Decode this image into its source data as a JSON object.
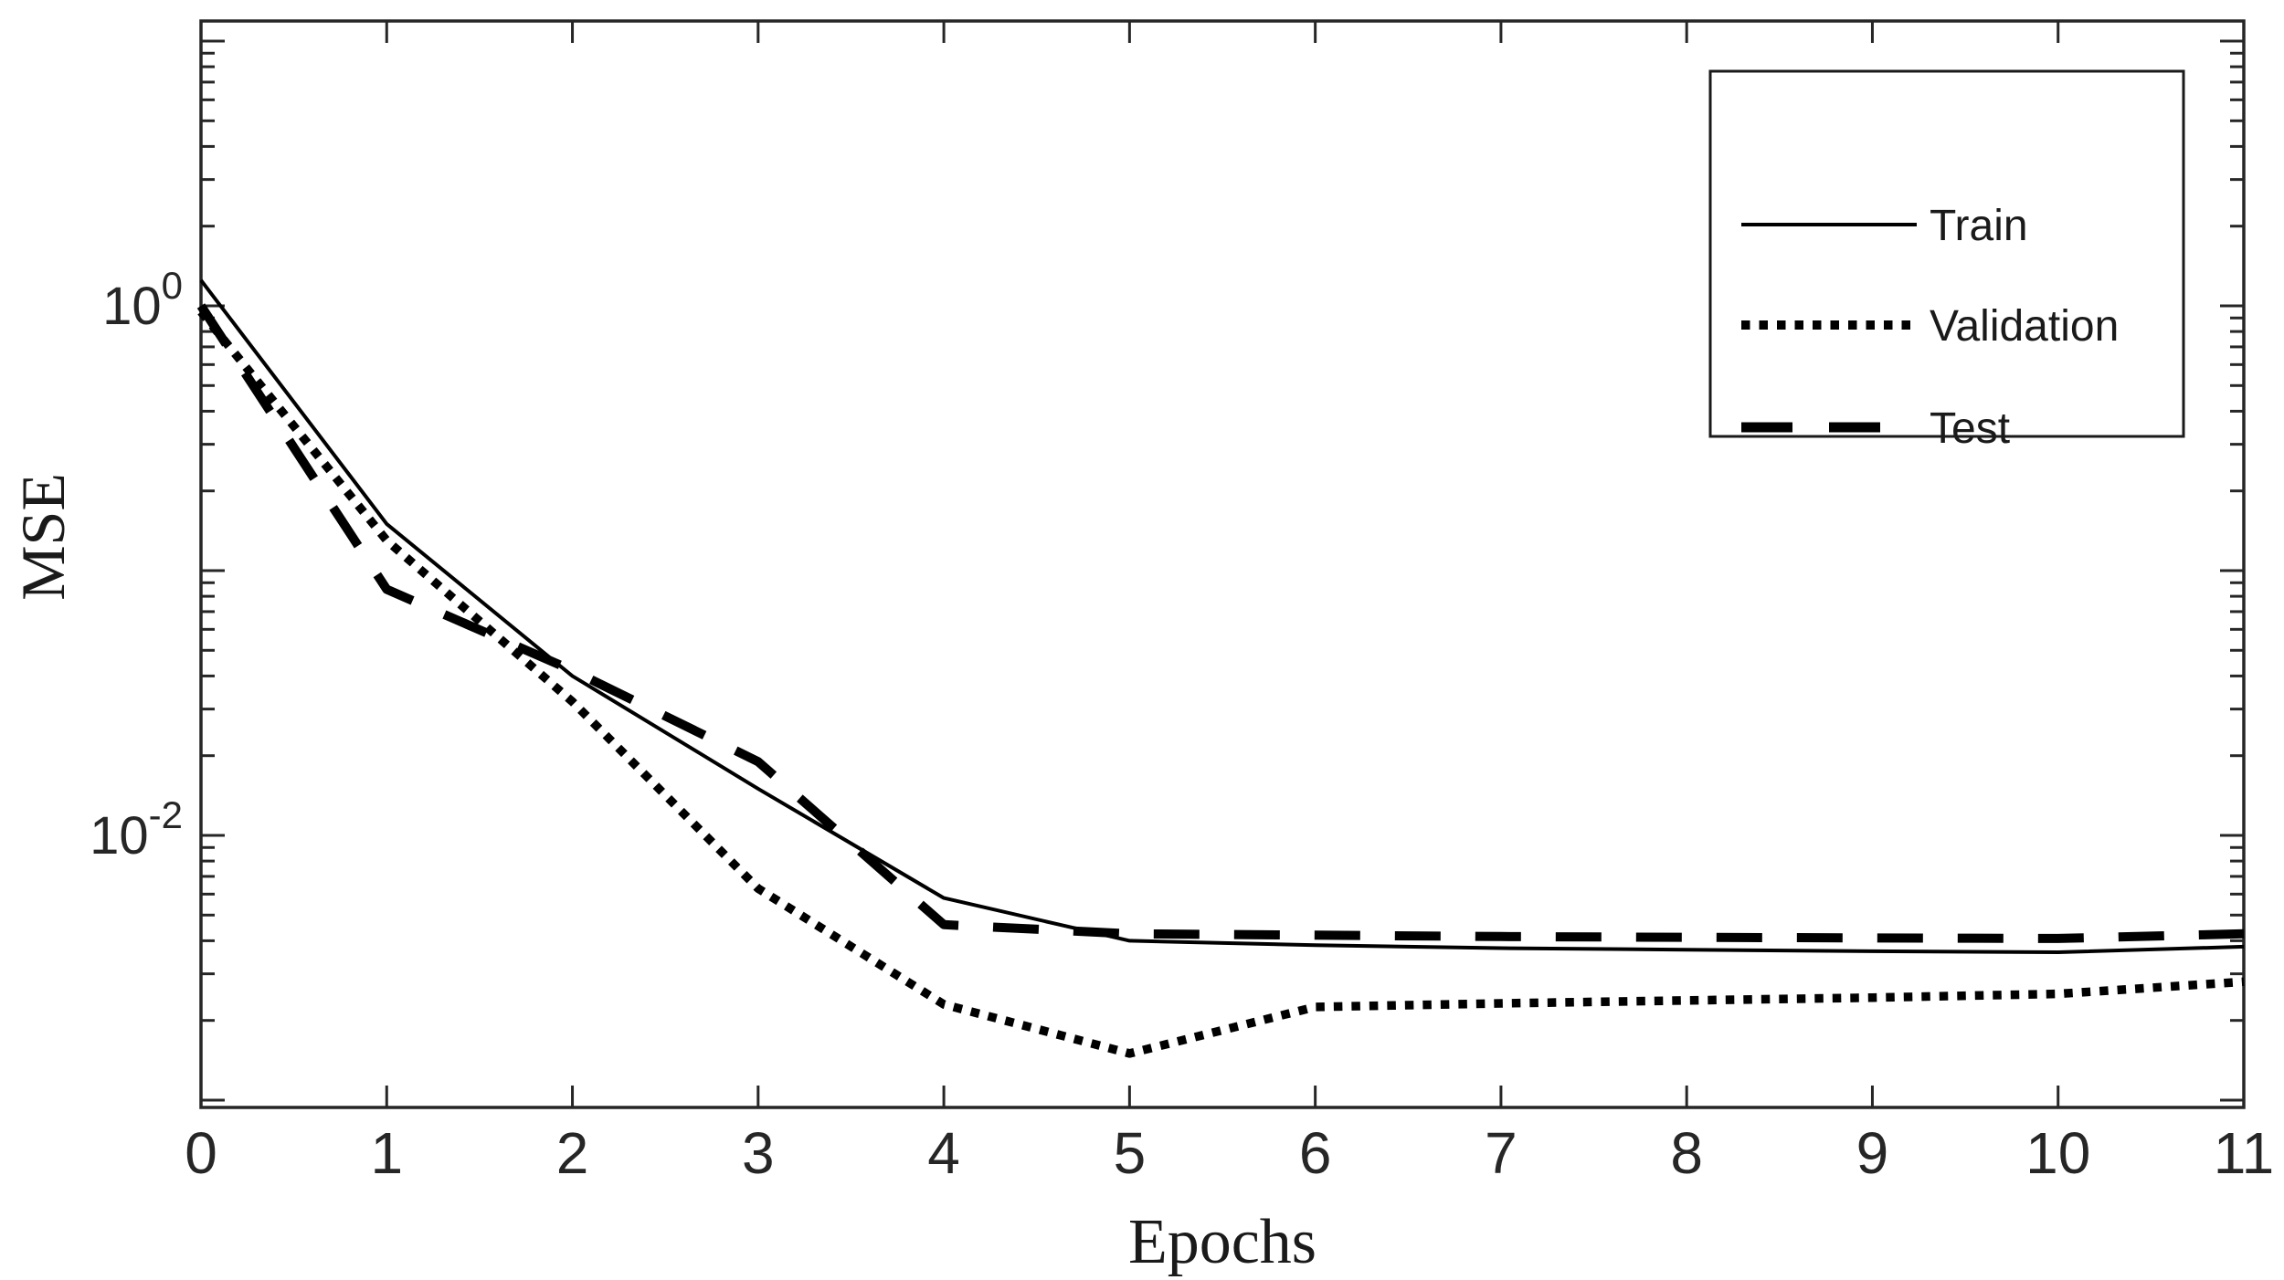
{
  "figure": {
    "background": "#ffffff",
    "axis_color": "#262626",
    "curve_color": "#000000",
    "tick_label_color": "#333333"
  },
  "axes": {
    "xlabel": "Epochs",
    "ylabel": "MSE",
    "x_ticks": [
      {
        "value": 0,
        "label": "0"
      },
      {
        "value": 1,
        "label": "1"
      },
      {
        "value": 2,
        "label": "2"
      },
      {
        "value": 3,
        "label": "3"
      },
      {
        "value": 4,
        "label": "4"
      },
      {
        "value": 5,
        "label": "5"
      },
      {
        "value": 6,
        "label": "6"
      },
      {
        "value": 7,
        "label": "7"
      },
      {
        "value": 8,
        "label": "8"
      },
      {
        "value": 9,
        "label": "9"
      },
      {
        "value": 10,
        "label": "10"
      },
      {
        "value": 11,
        "label": "11"
      }
    ],
    "y_major_exponents": [
      1,
      0,
      -1,
      -2,
      -3
    ],
    "y_labeled_ticks": [
      {
        "exponent": 0,
        "base": "10",
        "exp_label": "0"
      },
      {
        "exponent": -2,
        "base": "10",
        "exp_label": "-2"
      }
    ],
    "y_minor_multiples": [
      2,
      3,
      4,
      5,
      6,
      7,
      8,
      9
    ]
  },
  "legend": {
    "entries": [
      {
        "label": "Train",
        "style": "solid"
      },
      {
        "label": "Validation",
        "style": "dotted"
      },
      {
        "label": "Test",
        "style": "dashed"
      }
    ]
  },
  "chart_data": {
    "type": "line",
    "title": "",
    "xlabel": "Epochs",
    "ylabel": "MSE",
    "x_range": [
      0,
      11
    ],
    "y_scale": "log",
    "ylim": [
      0.00087,
      11.5
    ],
    "grid": false,
    "legend_position": "top-right",
    "x": [
      0,
      1,
      2,
      3,
      4,
      5,
      6,
      7,
      8,
      9,
      10,
      11
    ],
    "series": [
      {
        "name": "Train",
        "style": "solid",
        "values": [
          1.25,
          0.15,
          0.04,
          0.015,
          0.0058,
          0.004,
          0.00385,
          0.00375,
          0.0037,
          0.00365,
          0.00362,
          0.0038
        ]
      },
      {
        "name": "Validation",
        "style": "dotted",
        "values": [
          0.95,
          0.13,
          0.032,
          0.0063,
          0.0023,
          0.0015,
          0.00225,
          0.00232,
          0.00238,
          0.00244,
          0.00252,
          0.0028
        ]
      },
      {
        "name": "Test",
        "style": "dashed",
        "values": [
          1.0,
          0.085,
          0.042,
          0.019,
          0.0046,
          0.00425,
          0.0042,
          0.00415,
          0.00412,
          0.0041,
          0.00408,
          0.00425
        ]
      }
    ]
  }
}
